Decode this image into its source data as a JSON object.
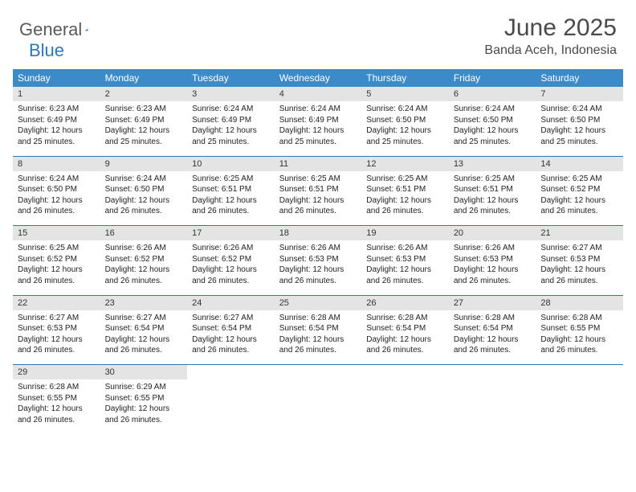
{
  "brand": {
    "word1": "General",
    "word2": "Blue"
  },
  "title": "June 2025",
  "location": "Banda Aceh, Indonesia",
  "colors": {
    "header_bar": "#3b8bc9",
    "week_divider": "#2f77bb",
    "daynum_bg": "#e4e4e4",
    "text": "#222222",
    "title_text": "#4a4a4a",
    "logo_gray": "#5a5a5a",
    "logo_blue": "#2f77bb",
    "background": "#ffffff"
  },
  "typography": {
    "title_fontsize": 30,
    "location_fontsize": 16,
    "dow_fontsize": 12,
    "daynum_fontsize": 11,
    "detail_fontsize": 10
  },
  "days_of_week": [
    "Sunday",
    "Monday",
    "Tuesday",
    "Wednesday",
    "Thursday",
    "Friday",
    "Saturday"
  ],
  "weeks": [
    [
      {
        "n": "1",
        "sr": "Sunrise: 6:23 AM",
        "ss": "Sunset: 6:49 PM",
        "d1": "Daylight: 12 hours",
        "d2": "and 25 minutes."
      },
      {
        "n": "2",
        "sr": "Sunrise: 6:23 AM",
        "ss": "Sunset: 6:49 PM",
        "d1": "Daylight: 12 hours",
        "d2": "and 25 minutes."
      },
      {
        "n": "3",
        "sr": "Sunrise: 6:24 AM",
        "ss": "Sunset: 6:49 PM",
        "d1": "Daylight: 12 hours",
        "d2": "and 25 minutes."
      },
      {
        "n": "4",
        "sr": "Sunrise: 6:24 AM",
        "ss": "Sunset: 6:49 PM",
        "d1": "Daylight: 12 hours",
        "d2": "and 25 minutes."
      },
      {
        "n": "5",
        "sr": "Sunrise: 6:24 AM",
        "ss": "Sunset: 6:50 PM",
        "d1": "Daylight: 12 hours",
        "d2": "and 25 minutes."
      },
      {
        "n": "6",
        "sr": "Sunrise: 6:24 AM",
        "ss": "Sunset: 6:50 PM",
        "d1": "Daylight: 12 hours",
        "d2": "and 25 minutes."
      },
      {
        "n": "7",
        "sr": "Sunrise: 6:24 AM",
        "ss": "Sunset: 6:50 PM",
        "d1": "Daylight: 12 hours",
        "d2": "and 25 minutes."
      }
    ],
    [
      {
        "n": "8",
        "sr": "Sunrise: 6:24 AM",
        "ss": "Sunset: 6:50 PM",
        "d1": "Daylight: 12 hours",
        "d2": "and 26 minutes."
      },
      {
        "n": "9",
        "sr": "Sunrise: 6:24 AM",
        "ss": "Sunset: 6:50 PM",
        "d1": "Daylight: 12 hours",
        "d2": "and 26 minutes."
      },
      {
        "n": "10",
        "sr": "Sunrise: 6:25 AM",
        "ss": "Sunset: 6:51 PM",
        "d1": "Daylight: 12 hours",
        "d2": "and 26 minutes."
      },
      {
        "n": "11",
        "sr": "Sunrise: 6:25 AM",
        "ss": "Sunset: 6:51 PM",
        "d1": "Daylight: 12 hours",
        "d2": "and 26 minutes."
      },
      {
        "n": "12",
        "sr": "Sunrise: 6:25 AM",
        "ss": "Sunset: 6:51 PM",
        "d1": "Daylight: 12 hours",
        "d2": "and 26 minutes."
      },
      {
        "n": "13",
        "sr": "Sunrise: 6:25 AM",
        "ss": "Sunset: 6:51 PM",
        "d1": "Daylight: 12 hours",
        "d2": "and 26 minutes."
      },
      {
        "n": "14",
        "sr": "Sunrise: 6:25 AM",
        "ss": "Sunset: 6:52 PM",
        "d1": "Daylight: 12 hours",
        "d2": "and 26 minutes."
      }
    ],
    [
      {
        "n": "15",
        "sr": "Sunrise: 6:25 AM",
        "ss": "Sunset: 6:52 PM",
        "d1": "Daylight: 12 hours",
        "d2": "and 26 minutes."
      },
      {
        "n": "16",
        "sr": "Sunrise: 6:26 AM",
        "ss": "Sunset: 6:52 PM",
        "d1": "Daylight: 12 hours",
        "d2": "and 26 minutes."
      },
      {
        "n": "17",
        "sr": "Sunrise: 6:26 AM",
        "ss": "Sunset: 6:52 PM",
        "d1": "Daylight: 12 hours",
        "d2": "and 26 minutes."
      },
      {
        "n": "18",
        "sr": "Sunrise: 6:26 AM",
        "ss": "Sunset: 6:53 PM",
        "d1": "Daylight: 12 hours",
        "d2": "and 26 minutes."
      },
      {
        "n": "19",
        "sr": "Sunrise: 6:26 AM",
        "ss": "Sunset: 6:53 PM",
        "d1": "Daylight: 12 hours",
        "d2": "and 26 minutes."
      },
      {
        "n": "20",
        "sr": "Sunrise: 6:26 AM",
        "ss": "Sunset: 6:53 PM",
        "d1": "Daylight: 12 hours",
        "d2": "and 26 minutes."
      },
      {
        "n": "21",
        "sr": "Sunrise: 6:27 AM",
        "ss": "Sunset: 6:53 PM",
        "d1": "Daylight: 12 hours",
        "d2": "and 26 minutes."
      }
    ],
    [
      {
        "n": "22",
        "sr": "Sunrise: 6:27 AM",
        "ss": "Sunset: 6:53 PM",
        "d1": "Daylight: 12 hours",
        "d2": "and 26 minutes."
      },
      {
        "n": "23",
        "sr": "Sunrise: 6:27 AM",
        "ss": "Sunset: 6:54 PM",
        "d1": "Daylight: 12 hours",
        "d2": "and 26 minutes."
      },
      {
        "n": "24",
        "sr": "Sunrise: 6:27 AM",
        "ss": "Sunset: 6:54 PM",
        "d1": "Daylight: 12 hours",
        "d2": "and 26 minutes."
      },
      {
        "n": "25",
        "sr": "Sunrise: 6:28 AM",
        "ss": "Sunset: 6:54 PM",
        "d1": "Daylight: 12 hours",
        "d2": "and 26 minutes."
      },
      {
        "n": "26",
        "sr": "Sunrise: 6:28 AM",
        "ss": "Sunset: 6:54 PM",
        "d1": "Daylight: 12 hours",
        "d2": "and 26 minutes."
      },
      {
        "n": "27",
        "sr": "Sunrise: 6:28 AM",
        "ss": "Sunset: 6:54 PM",
        "d1": "Daylight: 12 hours",
        "d2": "and 26 minutes."
      },
      {
        "n": "28",
        "sr": "Sunrise: 6:28 AM",
        "ss": "Sunset: 6:55 PM",
        "d1": "Daylight: 12 hours",
        "d2": "and 26 minutes."
      }
    ],
    [
      {
        "n": "29",
        "sr": "Sunrise: 6:28 AM",
        "ss": "Sunset: 6:55 PM",
        "d1": "Daylight: 12 hours",
        "d2": "and 26 minutes."
      },
      {
        "n": "30",
        "sr": "Sunrise: 6:29 AM",
        "ss": "Sunset: 6:55 PM",
        "d1": "Daylight: 12 hours",
        "d2": "and 26 minutes."
      },
      null,
      null,
      null,
      null,
      null
    ]
  ]
}
